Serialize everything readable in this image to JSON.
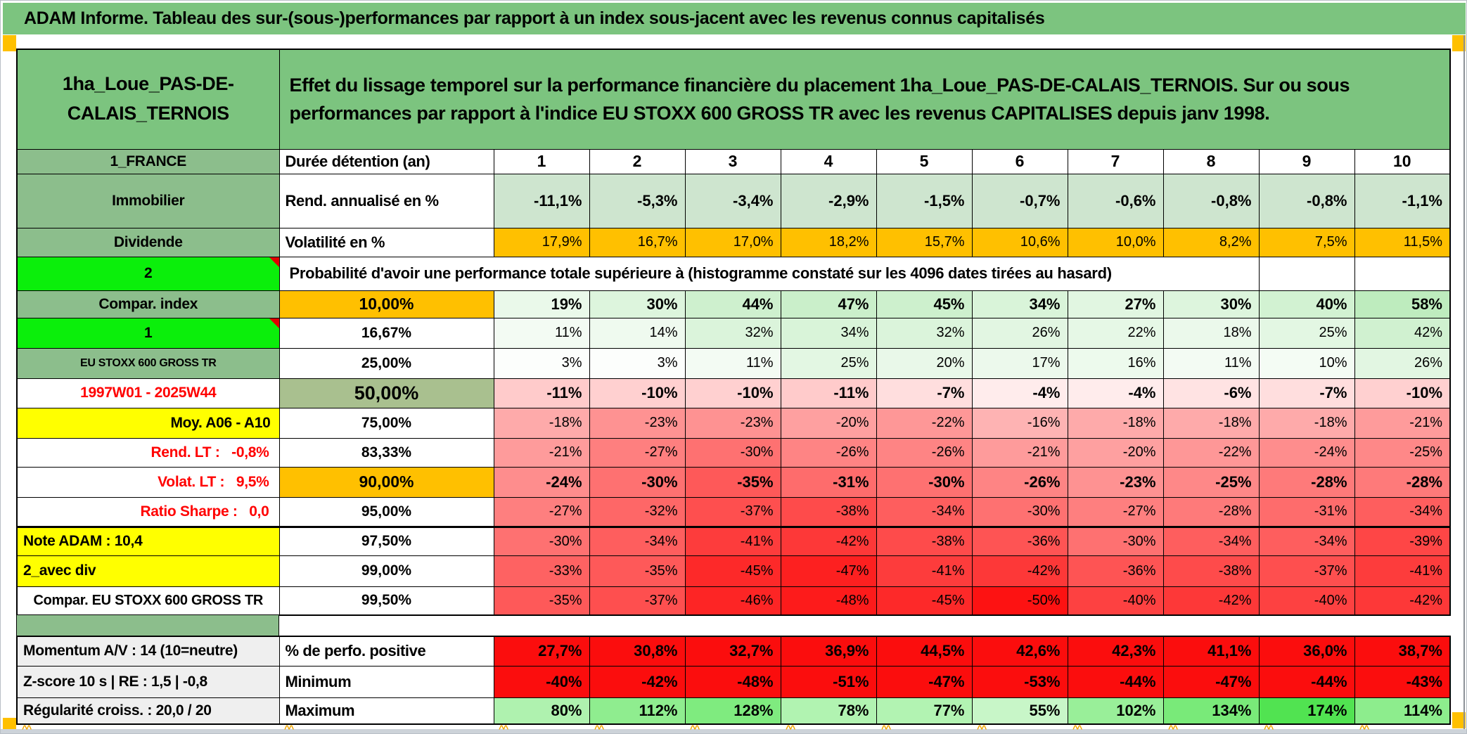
{
  "title_bar": "ADAM Informe. Tableau des sur-(sous-)performances par rapport à un index sous-jacent avec les revenus connus capitalisés",
  "header": {
    "asset_name": "1ha_Loue_PAS-DE-CALAIS_TERNOIS",
    "description": "Effet du lissage temporel sur la performance financière du placement 1ha_Loue_PAS-DE-CALAIS_TERNOIS. Sur ou sous performances par rapport à l'indice EU STOXX 600 GROSS TR avec les revenus CAPITALISES depuis janv 1998."
  },
  "columns": [
    "1",
    "2",
    "3",
    "4",
    "5",
    "6",
    "7",
    "8",
    "9",
    "10"
  ],
  "info_rows": [
    {
      "label": "1_FRANCE",
      "metric": "Durée détention (an)",
      "style": "cols"
    },
    {
      "label": "Immobilier",
      "metric": "Rend. annualisé en %",
      "style": "annual",
      "values": [
        "-11,1%",
        "-5,3%",
        "-3,4%",
        "-2,9%",
        "-1,5%",
        "-0,7%",
        "-0,6%",
        "-0,8%",
        "-0,8%",
        "-1,1%"
      ]
    },
    {
      "label": "Dividende",
      "metric": "Volatilité en %",
      "style": "vol",
      "values": [
        "17,9%",
        "16,7%",
        "17,0%",
        "18,2%",
        "15,7%",
        "10,6%",
        "10,0%",
        "8,2%",
        "7,5%",
        "11,5%"
      ]
    }
  ],
  "banner": {
    "label": "2",
    "text": "Probabilité d'avoir une performance totale supérieure à (histogramme constaté sur les 4096 dates tirées au hasard)"
  },
  "probability_rows": [
    {
      "label": "Compar. index",
      "label_style": "green",
      "threshold": "10,00%",
      "threshold_style": "orange",
      "emph": true,
      "values": [
        "19%",
        "30%",
        "44%",
        "47%",
        "45%",
        "34%",
        "27%",
        "30%",
        "40%",
        "58%"
      ]
    },
    {
      "label": "1",
      "label_style": "bright",
      "threshold": "16,67%",
      "threshold_style": "plain",
      "values": [
        "11%",
        "14%",
        "32%",
        "34%",
        "32%",
        "26%",
        "22%",
        "18%",
        "25%",
        "42%"
      ]
    },
    {
      "label": "EU STOXX 600 GROSS TR",
      "label_style": "green small",
      "threshold": "25,00%",
      "threshold_style": "plain",
      "values": [
        "3%",
        "3%",
        "11%",
        "25%",
        "20%",
        "17%",
        "16%",
        "11%",
        "10%",
        "26%"
      ]
    },
    {
      "label": "1997W01 - 2025W44",
      "label_style": "red-center",
      "threshold": "50,00%",
      "threshold_style": "sage",
      "emph": true,
      "values": [
        "-11%",
        "-10%",
        "-10%",
        "-11%",
        "-7%",
        "-4%",
        "-4%",
        "-6%",
        "-7%",
        "-10%"
      ]
    },
    {
      "label": "Moy. A06 - A10",
      "label_style": "yellow-right",
      "threshold": "75,00%",
      "threshold_style": "plain",
      "values": [
        "-18%",
        "-23%",
        "-23%",
        "-20%",
        "-22%",
        "-16%",
        "-18%",
        "-18%",
        "-18%",
        "-21%"
      ]
    },
    {
      "label": "Rend. LT :   -0,8%",
      "label_style": "red-right",
      "threshold": "83,33%",
      "threshold_style": "plain",
      "values": [
        "-21%",
        "-27%",
        "-30%",
        "-26%",
        "-26%",
        "-21%",
        "-20%",
        "-22%",
        "-24%",
        "-25%"
      ]
    },
    {
      "label": "Volat. LT :   9,5%",
      "label_style": "red-right",
      "threshold": "90,00%",
      "threshold_style": "orange",
      "emph": true,
      "values": [
        "-24%",
        "-30%",
        "-35%",
        "-31%",
        "-30%",
        "-26%",
        "-23%",
        "-25%",
        "-28%",
        "-28%"
      ]
    },
    {
      "label": "Ratio Sharpe :   0,0",
      "label_style": "red-right",
      "threshold": "95,00%",
      "threshold_style": "plain",
      "thick_bottom": true,
      "values": [
        "-27%",
        "-32%",
        "-37%",
        "-38%",
        "-34%",
        "-30%",
        "-27%",
        "-28%",
        "-31%",
        "-34%"
      ]
    },
    {
      "label": "Note ADAM : 10,4",
      "label_style": "yellow-left",
      "threshold": "97,50%",
      "threshold_style": "plain",
      "values": [
        "-30%",
        "-34%",
        "-41%",
        "-42%",
        "-38%",
        "-36%",
        "-30%",
        "-34%",
        "-34%",
        "-39%"
      ]
    },
    {
      "label": "2_avec div",
      "label_style": "yellow-left",
      "threshold": "99,00%",
      "threshold_style": "plain",
      "values": [
        "-33%",
        "-35%",
        "-45%",
        "-47%",
        "-41%",
        "-42%",
        "-36%",
        "-38%",
        "-37%",
        "-41%"
      ]
    },
    {
      "label": "Compar. EU STOXX 600 GROSS TR",
      "label_style": "white-center",
      "threshold": "99,50%",
      "threshold_style": "plain",
      "values": [
        "-35%",
        "-37%",
        "-46%",
        "-48%",
        "-45%",
        "-50%",
        "-40%",
        "-42%",
        "-40%",
        "-42%"
      ]
    }
  ],
  "summary_rows": [
    {
      "label": "Momentum A/V : 14 (10=neutre)",
      "metric": "% de perfo. positive",
      "mode": "red",
      "values": [
        "27,7%",
        "30,8%",
        "32,7%",
        "36,9%",
        "44,5%",
        "42,6%",
        "42,3%",
        "41,1%",
        "36,0%",
        "38,7%"
      ]
    },
    {
      "label": "Z-score 10 s | RE : 1,5 | -0,8",
      "metric": "Minimum",
      "mode": "red",
      "values": [
        "-40%",
        "-42%",
        "-48%",
        "-51%",
        "-47%",
        "-53%",
        "-44%",
        "-47%",
        "-44%",
        "-43%"
      ]
    },
    {
      "label": "Régularité croiss. : 20,0 / 20",
      "metric": "Maximum",
      "mode": "green",
      "values": [
        "80%",
        "112%",
        "128%",
        "78%",
        "77%",
        "55%",
        "102%",
        "134%",
        "174%",
        "114%"
      ]
    }
  ],
  "decorations": {
    "overflow_glyph": "^^"
  },
  "colors": {
    "title_green": "#7cc47f",
    "label_green": "#8cbe8c",
    "bright_green": "#0bef0b",
    "orange": "#ffc000",
    "yellow": "#ffff00",
    "sage": "#a9c08f",
    "info_green": "#cee5cf",
    "summary_red": "#fb0d0d",
    "red_text": "#ff0000",
    "gray_label": "#efefef"
  }
}
